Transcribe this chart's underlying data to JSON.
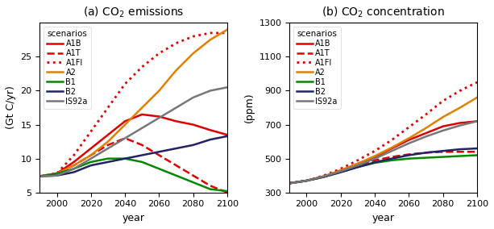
{
  "title_a": "(a) CO$_2$ emissions",
  "title_b": "(b) CO$_2$ concentration",
  "xlabel": "year",
  "ylabel_a": "(Gt C/yr)",
  "ylabel_b": "(ppm)",
  "years": [
    1990,
    2000,
    2010,
    2020,
    2030,
    2040,
    2050,
    2060,
    2070,
    2080,
    2090,
    2100
  ],
  "emissions": {
    "A1B": [
      7.4,
      7.8,
      9.5,
      11.5,
      13.5,
      15.5,
      16.5,
      16.2,
      15.5,
      15.0,
      14.2,
      13.5
    ],
    "A1T": [
      7.4,
      7.8,
      9.0,
      10.5,
      12.0,
      13.0,
      12.0,
      10.5,
      9.0,
      7.5,
      6.0,
      5.0
    ],
    "A1FI": [
      7.4,
      7.8,
      10.5,
      14.0,
      17.5,
      21.0,
      23.5,
      25.5,
      27.0,
      28.0,
      28.5,
      28.5
    ],
    "A2": [
      7.4,
      7.8,
      9.0,
      10.5,
      12.5,
      15.0,
      17.5,
      20.0,
      23.0,
      25.5,
      27.5,
      29.0
    ],
    "B1": [
      7.4,
      7.8,
      8.5,
      9.5,
      10.0,
      10.0,
      9.5,
      8.5,
      7.5,
      6.5,
      5.5,
      5.2
    ],
    "B2": [
      7.4,
      7.5,
      8.0,
      9.0,
      9.5,
      10.0,
      10.5,
      11.0,
      11.5,
      12.0,
      12.8,
      13.3
    ],
    "IS92a": [
      7.4,
      7.5,
      8.5,
      10.0,
      11.5,
      13.0,
      14.5,
      16.0,
      17.5,
      19.0,
      20.0,
      20.5
    ]
  },
  "concentrations": {
    "A1B": [
      355,
      370,
      395,
      430,
      470,
      510,
      560,
      610,
      650,
      690,
      710,
      720
    ],
    "A1T": [
      355,
      370,
      393,
      425,
      460,
      490,
      510,
      525,
      535,
      540,
      540,
      540
    ],
    "A1FI": [
      355,
      370,
      400,
      440,
      490,
      545,
      610,
      685,
      760,
      840,
      900,
      950
    ],
    "A2": [
      355,
      370,
      395,
      430,
      470,
      515,
      565,
      620,
      680,
      745,
      800,
      860
    ],
    "B1": [
      355,
      370,
      392,
      420,
      450,
      475,
      490,
      500,
      505,
      510,
      515,
      520
    ],
    "B2": [
      355,
      370,
      392,
      420,
      450,
      478,
      500,
      520,
      535,
      545,
      555,
      560
    ],
    "IS92a": [
      355,
      370,
      395,
      425,
      460,
      500,
      545,
      590,
      630,
      665,
      695,
      720
    ]
  },
  "styles": {
    "A1B": {
      "color": "#dd0000",
      "linestyle": "-",
      "linewidth": 1.8
    },
    "A1T": {
      "color": "#dd0000",
      "linestyle": "--",
      "linewidth": 1.8
    },
    "A1FI": {
      "color": "#dd0000",
      "linestyle": ":",
      "linewidth": 2.0
    },
    "A2": {
      "color": "#e08000",
      "linestyle": "-",
      "linewidth": 1.8
    },
    "B1": {
      "color": "#008800",
      "linestyle": "-",
      "linewidth": 1.8
    },
    "B2": {
      "color": "#222266",
      "linestyle": "-",
      "linewidth": 1.8
    },
    "IS92a": {
      "color": "#777777",
      "linestyle": "-",
      "linewidth": 1.8
    }
  },
  "xlim": [
    1990,
    2100
  ],
  "xticks": [
    2000,
    2020,
    2040,
    2060,
    2080,
    2100
  ],
  "ylim_a": [
    5,
    30
  ],
  "yticks_a": [
    5,
    10,
    15,
    20,
    25
  ],
  "ylim_b": [
    300,
    1300
  ],
  "yticks_b": [
    300,
    500,
    700,
    900,
    1100,
    1300
  ],
  "legend_title": "scenarios",
  "legend_labels": [
    "A1B",
    "A1T",
    "A1FI",
    "A2",
    "B1",
    "B2",
    "IS92a"
  ],
  "background_color": "#ffffff"
}
